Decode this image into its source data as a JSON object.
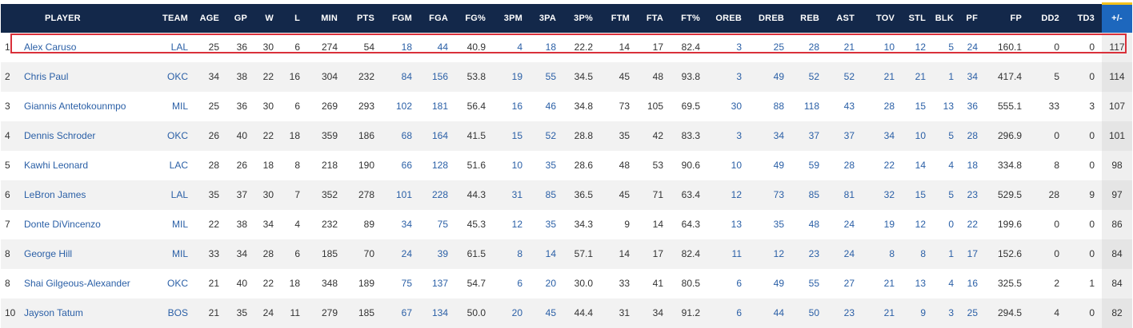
{
  "columns": [
    "",
    "PLAYER",
    "TEAM",
    "AGE",
    "GP",
    "W",
    "L",
    "MIN",
    "PTS",
    "FGM",
    "FGA",
    "FG%",
    "3PM",
    "3PA",
    "3P%",
    "FTM",
    "FTA",
    "FT%",
    "OREB",
    "DREB",
    "REB",
    "AST",
    "TOV",
    "STL",
    "BLK",
    "PF",
    "FP",
    "DD2",
    "TD3",
    "+/-"
  ],
  "rows": [
    [
      "1",
      "Alex Caruso",
      "LAL",
      "25",
      "36",
      "30",
      "6",
      "274",
      "54",
      "18",
      "44",
      "40.9",
      "4",
      "18",
      "22.2",
      "14",
      "17",
      "82.4",
      "3",
      "25",
      "28",
      "21",
      "10",
      "12",
      "5",
      "24",
      "160.1",
      "0",
      "0",
      "117"
    ],
    [
      "2",
      "Chris Paul",
      "OKC",
      "34",
      "38",
      "22",
      "16",
      "304",
      "232",
      "84",
      "156",
      "53.8",
      "19",
      "55",
      "34.5",
      "45",
      "48",
      "93.8",
      "3",
      "49",
      "52",
      "52",
      "21",
      "21",
      "1",
      "34",
      "417.4",
      "5",
      "0",
      "114"
    ],
    [
      "3",
      "Giannis Antetokounmpo",
      "MIL",
      "25",
      "36",
      "30",
      "6",
      "269",
      "293",
      "102",
      "181",
      "56.4",
      "16",
      "46",
      "34.8",
      "73",
      "105",
      "69.5",
      "30",
      "88",
      "118",
      "43",
      "28",
      "15",
      "13",
      "36",
      "555.1",
      "33",
      "3",
      "107"
    ],
    [
      "4",
      "Dennis Schroder",
      "OKC",
      "26",
      "40",
      "22",
      "18",
      "359",
      "186",
      "68",
      "164",
      "41.5",
      "15",
      "52",
      "28.8",
      "35",
      "42",
      "83.3",
      "3",
      "34",
      "37",
      "37",
      "34",
      "10",
      "5",
      "28",
      "296.9",
      "0",
      "0",
      "101"
    ],
    [
      "5",
      "Kawhi Leonard",
      "LAC",
      "28",
      "26",
      "18",
      "8",
      "218",
      "190",
      "66",
      "128",
      "51.6",
      "10",
      "35",
      "28.6",
      "48",
      "53",
      "90.6",
      "10",
      "49",
      "59",
      "28",
      "22",
      "14",
      "4",
      "18",
      "334.8",
      "8",
      "0",
      "98"
    ],
    [
      "6",
      "LeBron James",
      "LAL",
      "35",
      "37",
      "30",
      "7",
      "352",
      "278",
      "101",
      "228",
      "44.3",
      "31",
      "85",
      "36.5",
      "45",
      "71",
      "63.4",
      "12",
      "73",
      "85",
      "81",
      "32",
      "15",
      "5",
      "23",
      "529.5",
      "28",
      "9",
      "97"
    ],
    [
      "7",
      "Donte DiVincenzo",
      "MIL",
      "22",
      "38",
      "34",
      "4",
      "232",
      "89",
      "34",
      "75",
      "45.3",
      "12",
      "35",
      "34.3",
      "9",
      "14",
      "64.3",
      "13",
      "35",
      "48",
      "24",
      "19",
      "12",
      "0",
      "22",
      "199.6",
      "0",
      "0",
      "86"
    ],
    [
      "8",
      "George Hill",
      "MIL",
      "33",
      "34",
      "28",
      "6",
      "185",
      "70",
      "24",
      "39",
      "61.5",
      "8",
      "14",
      "57.1",
      "14",
      "17",
      "82.4",
      "11",
      "12",
      "23",
      "24",
      "8",
      "8",
      "1",
      "17",
      "152.6",
      "0",
      "0",
      "84"
    ],
    [
      "8",
      "Shai Gilgeous-Alexander",
      "OKC",
      "21",
      "40",
      "22",
      "18",
      "348",
      "189",
      "75",
      "137",
      "54.7",
      "6",
      "20",
      "30.0",
      "33",
      "41",
      "80.5",
      "6",
      "49",
      "55",
      "27",
      "21",
      "13",
      "4",
      "16",
      "325.5",
      "2",
      "1",
      "84"
    ],
    [
      "10",
      "Jayson Tatum",
      "BOS",
      "21",
      "35",
      "24",
      "11",
      "279",
      "185",
      "67",
      "134",
      "50.0",
      "20",
      "45",
      "44.4",
      "31",
      "34",
      "91.2",
      "6",
      "44",
      "50",
      "23",
      "21",
      "9",
      "3",
      "25",
      "294.5",
      "4",
      "0",
      "82"
    ]
  ],
  "colors": {
    "header_bg": "#13284a",
    "pm_header_bg": "#1d67bd",
    "pm_header_accent": "#f4c21c",
    "link": "#2a5fa6",
    "highlight_border": "#d9303a"
  }
}
